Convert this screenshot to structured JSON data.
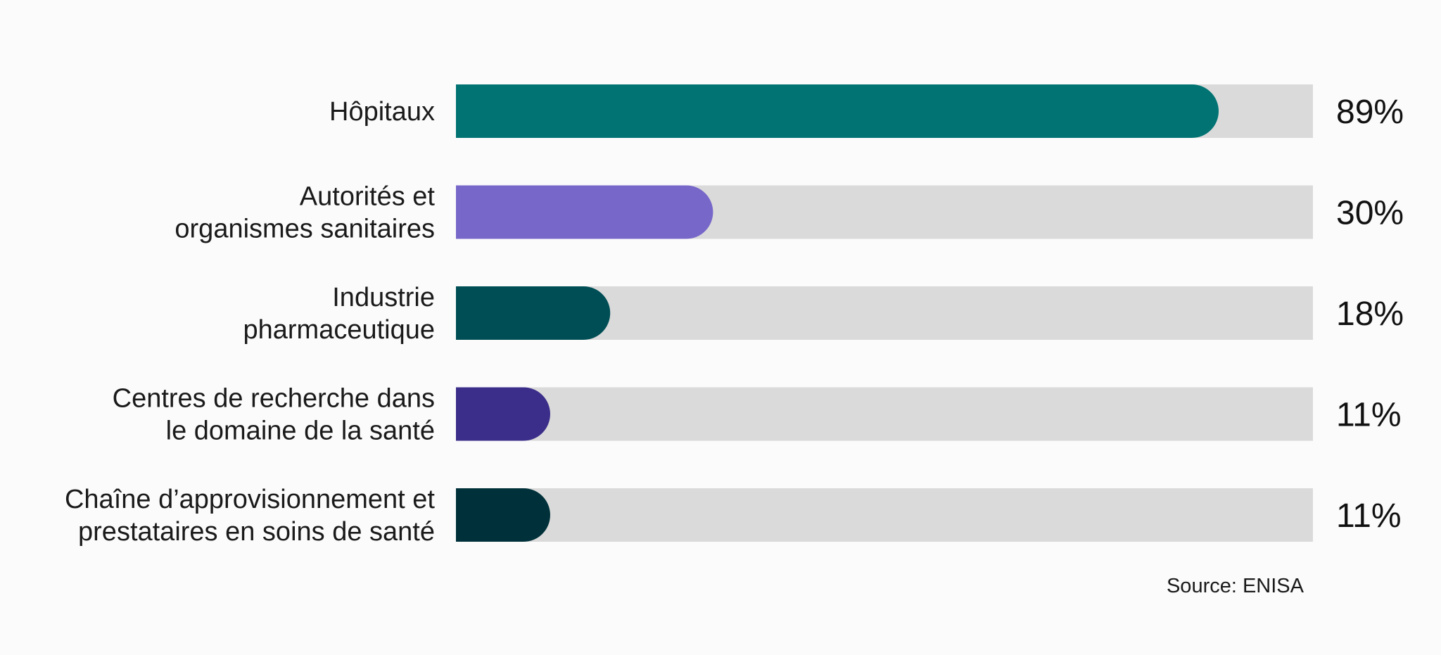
{
  "chart_data": {
    "type": "bar",
    "orientation": "horizontal",
    "categories": [
      [
        "Hôpitaux"
      ],
      [
        "Autorités et",
        "organismes sanitaires"
      ],
      [
        "Industrie",
        "pharmaceutique"
      ],
      [
        "Centres de recherche dans",
        "le domaine de la santé"
      ],
      [
        "Chaîne d’approvisionnement et",
        "prestataires en soins de santé"
      ]
    ],
    "values": [
      89,
      30,
      18,
      11,
      11
    ],
    "value_labels": [
      "89%",
      "30%",
      "18%",
      "11%",
      "11%"
    ],
    "xlim": [
      0,
      100
    ],
    "colors": [
      "#017373",
      "#7667c9",
      "#004e55",
      "#3a2e8a",
      "#00313a"
    ],
    "track_color": "#dadada",
    "grid": false,
    "legend": "none",
    "title": "",
    "xlabel": "",
    "ylabel": "",
    "source": "Source: ENISA"
  }
}
